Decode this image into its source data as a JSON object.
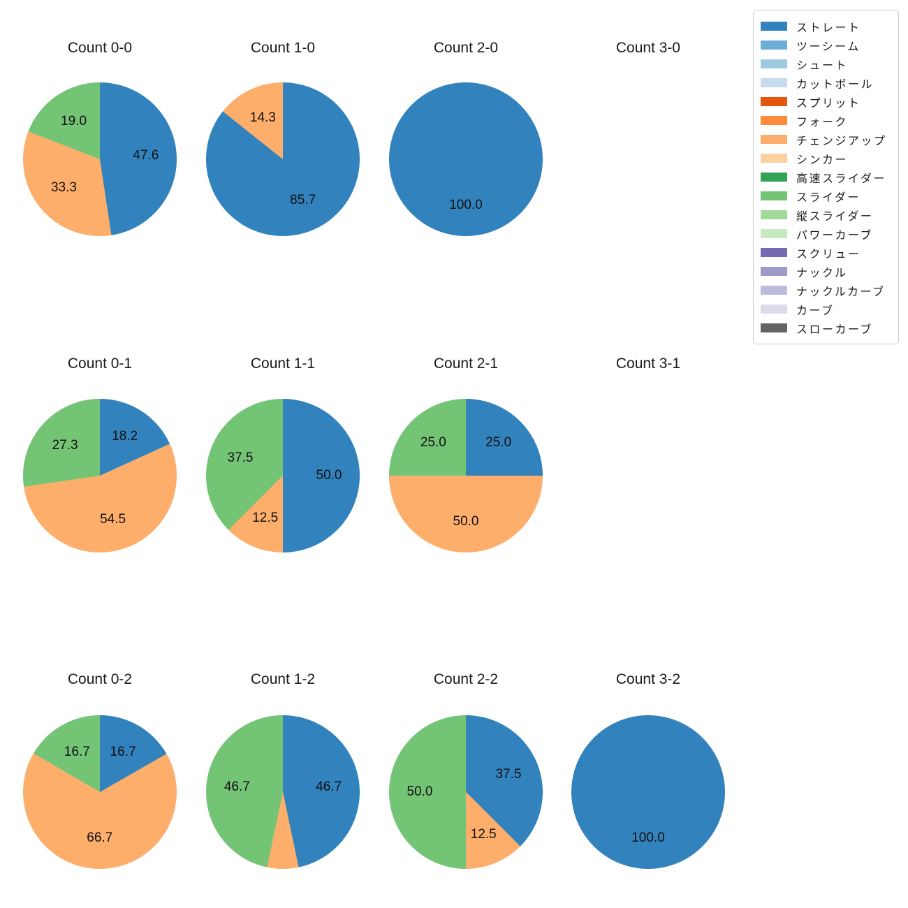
{
  "figure": {
    "background": "#ffffff"
  },
  "palette": {
    "straight_blue": "#3182bd",
    "changeup_orange": "#fdae6b",
    "slider_green": "#74c476"
  },
  "legend": {
    "items": [
      {
        "label": "ストレート",
        "color": "#3182bd"
      },
      {
        "label": "ツーシーム",
        "color": "#6baed6"
      },
      {
        "label": "シュート",
        "color": "#9ecae1"
      },
      {
        "label": "カットボール",
        "color": "#c6dbef"
      },
      {
        "label": "スプリット",
        "color": "#e6550d"
      },
      {
        "label": "フォーク",
        "color": "#fd8d3c"
      },
      {
        "label": "チェンジアップ",
        "color": "#fdae6b"
      },
      {
        "label": "シンカー",
        "color": "#fdd0a2"
      },
      {
        "label": "高速スライダー",
        "color": "#31a354"
      },
      {
        "label": "スライダー",
        "color": "#74c476"
      },
      {
        "label": "縦スライダー",
        "color": "#a1d99b"
      },
      {
        "label": "パワーカーブ",
        "color": "#c7e9c0"
      },
      {
        "label": "スクリュー",
        "color": "#756bb1"
      },
      {
        "label": "ナックル",
        "color": "#9e9ac8"
      },
      {
        "label": "ナックルカーブ",
        "color": "#bcbddc"
      },
      {
        "label": "カーブ",
        "color": "#dadaeb"
      },
      {
        "label": "スローカーブ",
        "color": "#636363"
      }
    ]
  },
  "chart_data": [
    {
      "type": "pie",
      "title": "Count 0-0",
      "start": "top",
      "direction": "clockwise",
      "labels": [
        "ストレート",
        "チェンジアップ",
        "スライダー"
      ],
      "values": [
        47.6,
        33.3,
        19.0
      ],
      "value_labels": [
        "47.6",
        "33.3",
        "19.0"
      ],
      "colors": [
        "#3182bd",
        "#fdae6b",
        "#74c476"
      ]
    },
    {
      "type": "pie",
      "title": "Count 1-0",
      "start": "top",
      "direction": "clockwise",
      "labels": [
        "ストレート",
        "チェンジアップ"
      ],
      "values": [
        85.7,
        14.3
      ],
      "value_labels": [
        "85.7",
        "14.3"
      ],
      "colors": [
        "#3182bd",
        "#fdae6b"
      ]
    },
    {
      "type": "pie",
      "title": "Count 2-0",
      "start": "top",
      "direction": "clockwise",
      "labels": [
        "ストレート"
      ],
      "values": [
        100.0
      ],
      "value_labels": [
        "100.0"
      ],
      "colors": [
        "#3182bd"
      ]
    },
    {
      "type": "pie",
      "title": "Count 3-0",
      "start": "top",
      "direction": "clockwise",
      "labels": [],
      "values": [],
      "value_labels": [],
      "colors": []
    },
    {
      "type": "pie",
      "title": "Count 0-1",
      "start": "top",
      "direction": "clockwise",
      "labels": [
        "ストレート",
        "チェンジアップ",
        "スライダー"
      ],
      "values": [
        18.2,
        54.5,
        27.3
      ],
      "value_labels": [
        "18.2",
        "54.5",
        "27.3"
      ],
      "colors": [
        "#3182bd",
        "#fdae6b",
        "#74c476"
      ]
    },
    {
      "type": "pie",
      "title": "Count 1-1",
      "start": "top",
      "direction": "clockwise",
      "labels": [
        "ストレート",
        "チェンジアップ",
        "スライダー"
      ],
      "values": [
        50.0,
        12.5,
        37.5
      ],
      "value_labels": [
        "50.0",
        "12.5",
        "37.5"
      ],
      "colors": [
        "#3182bd",
        "#fdae6b",
        "#74c476"
      ]
    },
    {
      "type": "pie",
      "title": "Count 2-1",
      "start": "top",
      "direction": "clockwise",
      "labels": [
        "ストレート",
        "チェンジアップ",
        "スライダー"
      ],
      "values": [
        25.0,
        50.0,
        25.0
      ],
      "value_labels": [
        "25.0",
        "50.0",
        "25.0"
      ],
      "colors": [
        "#3182bd",
        "#fdae6b",
        "#74c476"
      ]
    },
    {
      "type": "pie",
      "title": "Count 3-1",
      "start": "top",
      "direction": "clockwise",
      "labels": [],
      "values": [],
      "value_labels": [],
      "colors": []
    },
    {
      "type": "pie",
      "title": "Count 0-2",
      "start": "top",
      "direction": "clockwise",
      "labels": [
        "ストレート",
        "チェンジアップ",
        "スライダー"
      ],
      "values": [
        16.7,
        66.7,
        16.7
      ],
      "value_labels": [
        "16.7",
        "66.7",
        "16.7"
      ],
      "colors": [
        "#3182bd",
        "#fdae6b",
        "#74c476"
      ]
    },
    {
      "type": "pie",
      "title": "Count 1-2",
      "start": "top",
      "direction": "clockwise",
      "labels": [
        "ストレート",
        "チェンジアップ",
        "スライダー"
      ],
      "values": [
        46.7,
        6.6,
        46.7
      ],
      "value_labels": [
        "46.7",
        "",
        "46.7"
      ],
      "colors": [
        "#3182bd",
        "#fdae6b",
        "#74c476"
      ]
    },
    {
      "type": "pie",
      "title": "Count 2-2",
      "start": "top",
      "direction": "clockwise",
      "labels": [
        "ストレート",
        "チェンジアップ",
        "スライダー"
      ],
      "values": [
        37.5,
        12.5,
        50.0
      ],
      "value_labels": [
        "37.5",
        "12.5",
        "50.0"
      ],
      "colors": [
        "#3182bd",
        "#fdae6b",
        "#74c476"
      ]
    },
    {
      "type": "pie",
      "title": "Count 3-2",
      "start": "top",
      "direction": "clockwise",
      "labels": [
        "ストレート"
      ],
      "values": [
        100.0
      ],
      "value_labels": [
        "100.0"
      ],
      "colors": [
        "#3182bd"
      ]
    }
  ]
}
